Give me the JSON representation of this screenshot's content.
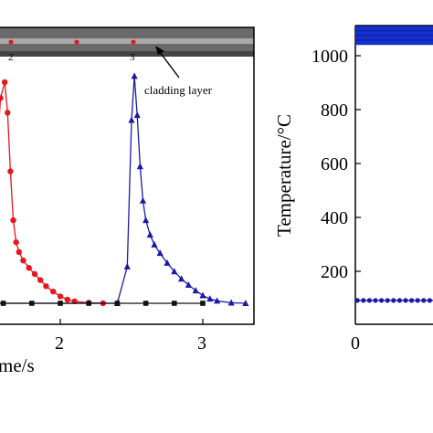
{
  "chart_data": [
    {
      "type": "line",
      "title": "",
      "xlabel": "me/s",
      "ylabel": "",
      "xlim": [
        0.95,
        3.35
      ],
      "x_ticks": [
        "2",
        "3"
      ],
      "y_ticks": [],
      "grid": false,
      "annotation": {
        "text": "cladding layer",
        "point_labels": [
          "2",
          "3"
        ]
      },
      "colors": {
        "red": "#e8141c",
        "blue": "#1a1aa8",
        "black": "#111111",
        "strip": "#6a6a6a"
      },
      "series": [
        {
          "color": "red",
          "marker": "circle",
          "x": [
            1.0,
            1.45,
            1.5,
            1.55,
            1.58,
            1.61,
            1.63,
            1.65,
            1.67,
            1.69,
            1.71,
            1.74,
            1.78,
            1.82,
            1.86,
            1.9,
            1.95,
            2.0,
            2.05,
            2.1,
            2.2,
            2.3
          ],
          "y": [
            80,
            80,
            290,
            630,
            920,
            985,
            860,
            620,
            420,
            330,
            290,
            255,
            225,
            200,
            175,
            150,
            128,
            108,
            95,
            88,
            82,
            80
          ]
        },
        {
          "color": "blue",
          "marker": "triangle",
          "x": [
            1.0,
            2.4,
            2.47,
            2.5,
            2.52,
            2.54,
            2.56,
            2.58,
            2.6,
            2.63,
            2.66,
            2.7,
            2.75,
            2.8,
            2.85,
            2.9,
            2.95,
            3.0,
            3.05,
            3.1,
            3.2,
            3.3
          ],
          "y": [
            80,
            80,
            230,
            830,
            1010,
            850,
            640,
            500,
            420,
            360,
            320,
            285,
            245,
            210,
            180,
            155,
            132,
            112,
            98,
            90,
            82,
            80
          ]
        },
        {
          "color": "black",
          "marker": "square",
          "x": [
            1.0,
            1.2,
            1.4,
            1.6,
            1.8,
            2.0,
            2.2,
            2.4,
            2.6,
            2.8,
            3.0
          ],
          "y": [
            80,
            80,
            80,
            80,
            80,
            80,
            80,
            80,
            80,
            80,
            80
          ]
        }
      ]
    },
    {
      "type": "scatter",
      "title": "",
      "xlabel": "",
      "ylabel": "Temperature/°C",
      "ylim": [
        0,
        1150
      ],
      "xlim": [
        0,
        2.2
      ],
      "x_ticks": [
        "0"
      ],
      "y_ticks": [
        "200",
        "400",
        "600",
        "800",
        "1000"
      ],
      "grid": false,
      "colors": {
        "blue": "#1a1aa8",
        "band": "#1330d0"
      },
      "series": [
        {
          "color": "blue",
          "marker": "circle",
          "x": [
            0.02,
            0.08,
            0.14,
            0.2,
            0.26,
            0.32,
            0.38,
            0.44,
            0.5,
            0.56,
            0.62,
            0.68,
            0.74,
            0.8
          ],
          "y": [
            92,
            92,
            92,
            92,
            92,
            92,
            92,
            92,
            92,
            92,
            92,
            92,
            92,
            92
          ]
        },
        {
          "color": "band",
          "marker": "band",
          "x": [
            0.0,
            0.8
          ],
          "y": [
            1040,
            1110
          ]
        }
      ]
    }
  ]
}
